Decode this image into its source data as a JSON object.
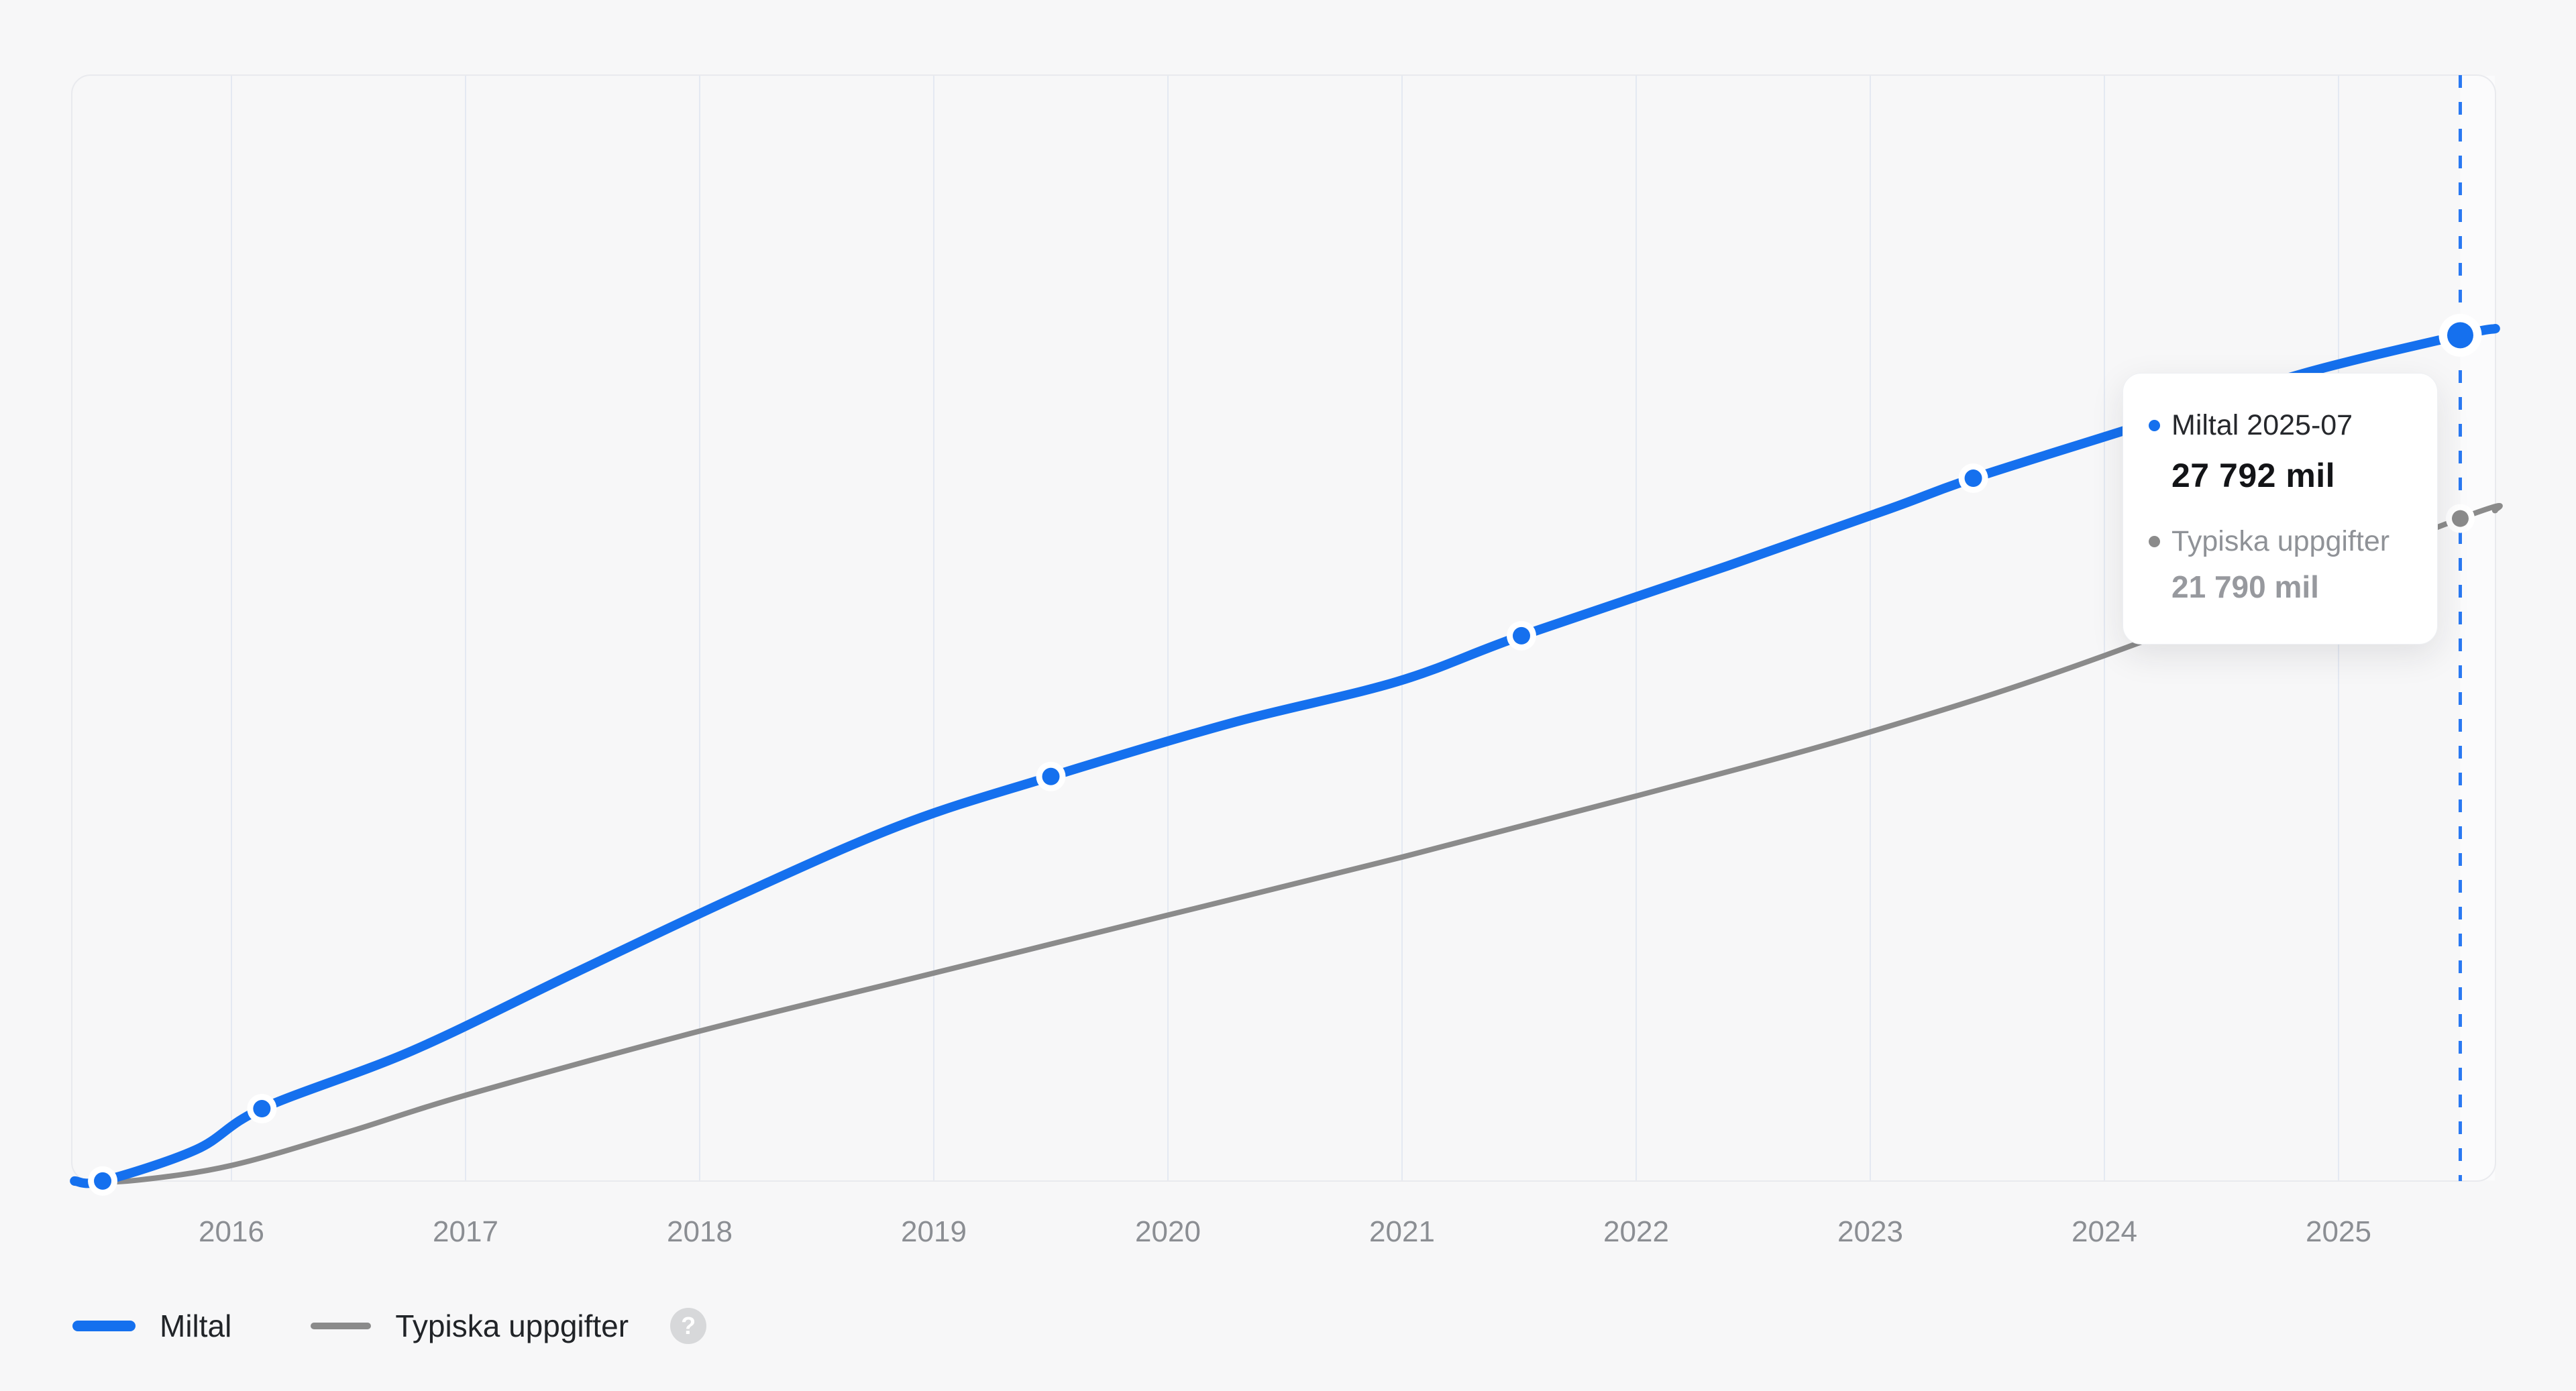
{
  "colors": {
    "background": "#f7f7f8",
    "accent_blue": "#1570ee",
    "dash_blue": "#2a79f2",
    "line_gray": "#8b8b8b",
    "grid": "#e4e9f2",
    "plot_border": "#e9eaee",
    "tick_label": "#8b8e93",
    "legend_text": "#212428",
    "tooltip_title": "#26282c",
    "tooltip_value": "#131417",
    "tooltip_secondary": "#97999e",
    "help_icon_bg": "#d7d8da"
  },
  "tooltip": {
    "title": "Miltal 2025-07",
    "value": "27 792 mil",
    "secondary_label": "Typiska uppgifter",
    "secondary_value": "21 790 mil"
  },
  "legend": {
    "items": [
      {
        "label": "Miltal",
        "color": "#1570ee"
      },
      {
        "label": "Typiska uppgifter",
        "color": "#8b8b8b"
      }
    ],
    "help_glyph": "?"
  },
  "chart_data": {
    "type": "line",
    "title": "",
    "xlabel": "",
    "ylabel": "",
    "x_unit": "year",
    "y_unit": "mil",
    "grid": "vertical-only",
    "legend_position": "bottom-left",
    "x_ticks": [
      2016,
      2017,
      2018,
      2019,
      2020,
      2021,
      2022,
      2023,
      2024,
      2025
    ],
    "x_tick_labels": [
      "2016",
      "2017",
      "2018",
      "2019",
      "2020",
      "2021",
      "2022",
      "2023",
      "2024",
      "2025"
    ],
    "xlim": [
      2015.33,
      2025.67
    ],
    "ylim": [
      0,
      29000
    ],
    "highlight": {
      "x": 2025.52,
      "date": "2025-07",
      "miltal_value": 27792,
      "typical_value": 21790
    },
    "series": [
      {
        "name": "Miltal",
        "color": "#1570ee",
        "points": [
          [
            2015.33,
            90
          ],
          [
            2015.45,
            90
          ],
          [
            2015.85,
            1120
          ],
          [
            2016.13,
            2460
          ],
          [
            2016.77,
            4350
          ],
          [
            2017.47,
            6920
          ],
          [
            2018.17,
            9450
          ],
          [
            2018.87,
            11780
          ],
          [
            2019.5,
            13340
          ],
          [
            2020.27,
            15090
          ],
          [
            2020.98,
            16450
          ],
          [
            2021.51,
            17950
          ],
          [
            2022.38,
            20210
          ],
          [
            2023.08,
            22100
          ],
          [
            2023.44,
            23110
          ],
          [
            2024.13,
            24780
          ],
          [
            2024.84,
            26520
          ],
          [
            2025.52,
            27792
          ],
          [
            2025.67,
            28010
          ]
        ],
        "marker_points": [
          [
            2015.45,
            90
          ],
          [
            2016.13,
            2460
          ],
          [
            2019.5,
            13340
          ],
          [
            2021.51,
            17950
          ],
          [
            2023.44,
            23110
          ]
        ],
        "end_marker": [
          2025.52,
          27792
        ]
      },
      {
        "name": "Typiska uppgifter",
        "color": "#8b8b8b",
        "points": [
          [
            2015.33,
            20
          ],
          [
            2015.6,
            120
          ],
          [
            2016.0,
            600
          ],
          [
            2016.5,
            1700
          ],
          [
            2017.0,
            2900
          ],
          [
            2018.0,
            5000
          ],
          [
            2019.0,
            6900
          ],
          [
            2020.0,
            8800
          ],
          [
            2021.0,
            10700
          ],
          [
            2022.0,
            12700
          ],
          [
            2023.0,
            14800
          ],
          [
            2024.0,
            17300
          ],
          [
            2025.52,
            21790
          ],
          [
            2025.67,
            22050
          ]
        ],
        "marker_points": [],
        "end_marker": [
          2025.52,
          21790
        ]
      }
    ]
  }
}
